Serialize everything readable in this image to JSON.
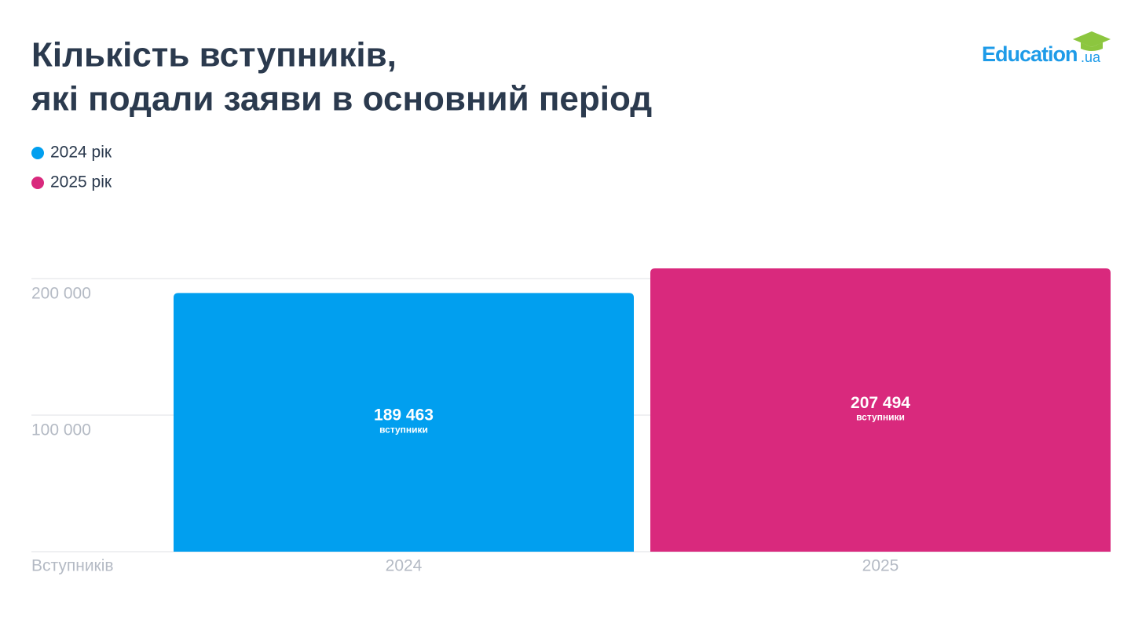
{
  "chart_data": {
    "type": "bar",
    "title": [
      "Кількість вступників,",
      "які подали заяви в основний період"
    ],
    "logo": {
      "text": "Education",
      "suffix": ".ua"
    },
    "legend": [
      "2024 рік",
      "2025 рік"
    ],
    "categories": [
      "2024",
      "2025"
    ],
    "values": [
      189463,
      207494
    ],
    "value_labels": [
      "189 463",
      "207 494"
    ],
    "value_unit": "вступники",
    "colors": [
      "#019fef",
      "#d9297d"
    ],
    "axis_label": "Вступників",
    "ylim": [
      0,
      210000
    ],
    "yticks": [
      {
        "value": 100000,
        "label": "100 000"
      },
      {
        "value": 200000,
        "label": "200 000"
      }
    ],
    "grid": true
  }
}
